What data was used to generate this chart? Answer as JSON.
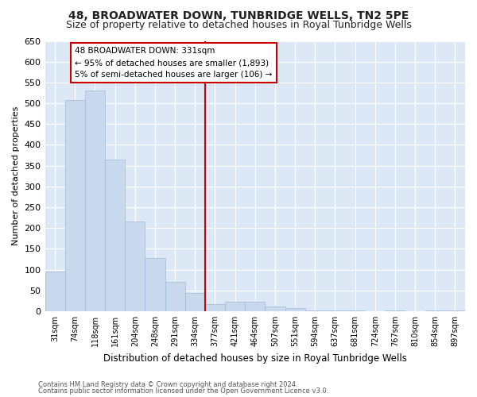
{
  "title1": "48, BROADWATER DOWN, TUNBRIDGE WELLS, TN2 5PE",
  "title2": "Size of property relative to detached houses in Royal Tunbridge Wells",
  "xlabel": "Distribution of detached houses by size in Royal Tunbridge Wells",
  "ylabel": "Number of detached properties",
  "footer1": "Contains HM Land Registry data © Crown copyright and database right 2024.",
  "footer2": "Contains public sector information licensed under the Open Government Licence v3.0.",
  "property_label": "48 BROADWATER DOWN: 331sqm",
  "annotation_line1": "← 95% of detached houses are smaller (1,893)",
  "annotation_line2": "5% of semi-detached houses are larger (106) →",
  "bar_labels": [
    "31sqm",
    "74sqm",
    "118sqm",
    "161sqm",
    "204sqm",
    "248sqm",
    "291sqm",
    "334sqm",
    "377sqm",
    "421sqm",
    "464sqm",
    "507sqm",
    "551sqm",
    "594sqm",
    "637sqm",
    "681sqm",
    "724sqm",
    "767sqm",
    "810sqm",
    "854sqm",
    "897sqm"
  ],
  "bar_values": [
    95,
    508,
    530,
    365,
    215,
    128,
    70,
    43,
    18,
    22,
    22,
    12,
    8,
    2,
    2,
    2,
    0,
    2,
    0,
    1,
    1
  ],
  "bar_color": "#c8d9ee",
  "bar_edge_color": "#a0b8d8",
  "vline_x_index": 7,
  "vline_color": "#cc0000",
  "annotation_box_color": "#cc0000",
  "ylim": [
    0,
    650
  ],
  "yticks": [
    0,
    50,
    100,
    150,
    200,
    250,
    300,
    350,
    400,
    450,
    500,
    550,
    600,
    650
  ],
  "fig_bg_color": "#ffffff",
  "plot_bg_color": "#dce8f5",
  "grid_color": "#ffffff",
  "title_fontsize": 10,
  "subtitle_fontsize": 9
}
